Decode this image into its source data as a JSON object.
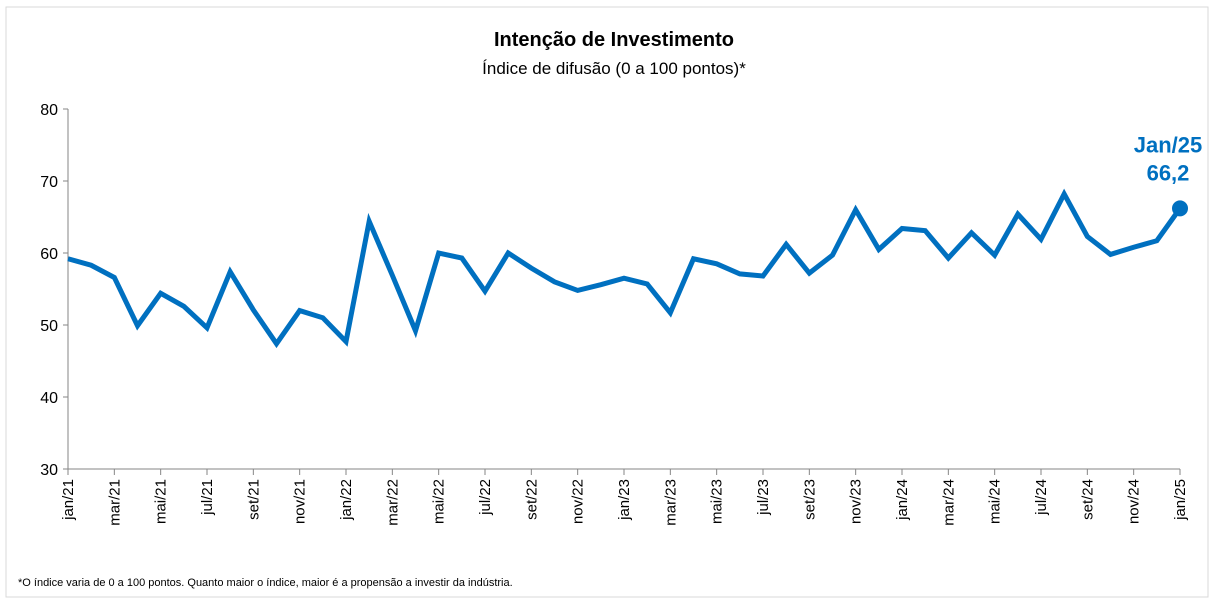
{
  "chart_data": {
    "type": "line",
    "title": "Intenção de Investimento",
    "subtitle": "Índice de difusão (0 a 100 pontos)*",
    "footnote": "*O índice varia de 0 a 100 pontos. Quanto maior o índice, maior é a propensão a investir da indústria.",
    "annotation": {
      "label": "Jan/25",
      "value_label": "66,2"
    },
    "categories": [
      "jan/21",
      null,
      "mar/21",
      null,
      "mai/21",
      null,
      "jul/21",
      null,
      "set/21",
      null,
      "nov/21",
      null,
      "jan/22",
      null,
      "mar/22",
      null,
      "mai/22",
      null,
      "jul/22",
      null,
      "set/22",
      null,
      "nov/22",
      null,
      "jan/23",
      null,
      "mar/23",
      null,
      "mai/23",
      null,
      "jul/23",
      null,
      "set/23",
      null,
      "nov/23",
      null,
      "jan/24",
      null,
      "mar/24",
      null,
      "mai/24",
      null,
      "jul/24",
      null,
      "set/24",
      null,
      "nov/24",
      null,
      "jan/25"
    ],
    "series": [
      {
        "name": "Intenção de Investimento",
        "color": "#0070c0",
        "values": [
          59.2,
          58.3,
          56.6,
          49.9,
          54.4,
          52.6,
          49.6,
          57.4,
          52.1,
          47.4,
          52.0,
          51.0,
          47.7,
          64.4,
          56.9,
          49.2,
          60.0,
          59.3,
          54.7,
          60.0,
          57.9,
          56.0,
          54.8,
          55.6,
          56.5,
          55.7,
          51.7,
          59.2,
          58.5,
          57.1,
          56.8,
          61.2,
          57.2,
          59.7,
          66.0,
          60.5,
          63.4,
          63.1,
          59.3,
          62.8,
          59.7,
          65.4,
          61.9,
          68.2,
          62.3,
          59.8,
          60.8,
          61.7,
          66.2
        ]
      }
    ],
    "ylim": [
      30,
      80
    ],
    "yticks": [
      30,
      40,
      50,
      60,
      70,
      80
    ]
  }
}
